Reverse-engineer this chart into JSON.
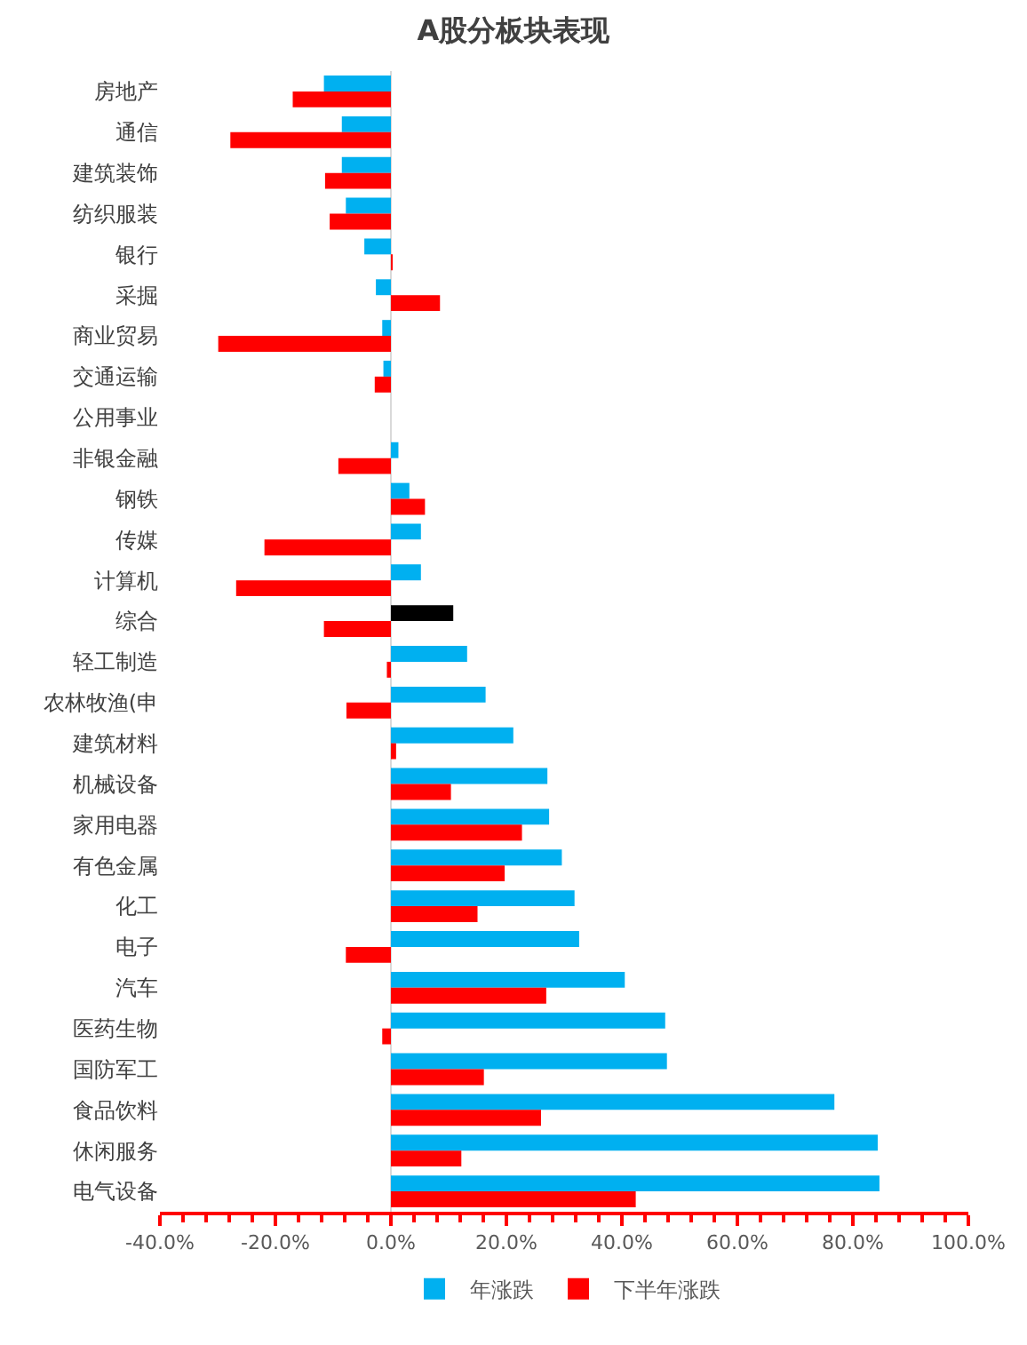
{
  "chart_data": {
    "type": "bar",
    "orientation": "horizontal",
    "title": "A股分板块表现",
    "categories": [
      "房地产",
      "通信",
      "建筑装饰",
      "纺织服装",
      "银行",
      "采掘",
      "商业贸易",
      "交通运输",
      "公用事业",
      "非银金融",
      "钢铁",
      "传媒",
      "计算机",
      "综合",
      "轻工制造",
      "农林牧渔(申",
      "建筑材料",
      "机械设备",
      "家用电器",
      "有色金属",
      "化工",
      "电子",
      "汽车",
      "医药生物",
      "国防军工",
      "食品饮料",
      "休闲服务",
      "电气设备"
    ],
    "series": [
      {
        "name": "年涨跌",
        "color": "#00b0f0",
        "colors": [
          "#00b0f0",
          "#00b0f0",
          "#00b0f0",
          "#00b0f0",
          "#00b0f0",
          "#00b0f0",
          "#00b0f0",
          "#00b0f0",
          "#00b0f0",
          "#00b0f0",
          "#00b0f0",
          "#00b0f0",
          "#00b0f0",
          "#000000",
          "#00b0f0",
          "#00b0f0",
          "#00b0f0",
          "#00b0f0",
          "#00b0f0",
          "#00b0f0",
          "#00b0f0",
          "#00b0f0",
          "#00b0f0",
          "#00b0f0",
          "#00b0f0",
          "#00b0f0",
          "#00b0f0",
          "#00b0f0"
        ],
        "values": [
          -11.6,
          -8.5,
          -8.5,
          -7.8,
          -4.6,
          -2.6,
          -1.5,
          -1.3,
          0,
          1.3,
          3.2,
          5.2,
          5.2,
          10.8,
          13.2,
          16.4,
          21.2,
          27.1,
          27.4,
          29.6,
          31.8,
          32.6,
          40.5,
          47.5,
          47.8,
          76.8,
          84.3,
          84.6
        ]
      },
      {
        "name": "下半年涨跌",
        "color": "#ff0000",
        "values": [
          -17.0,
          -27.8,
          -11.4,
          -10.6,
          0.3,
          8.5,
          -29.9,
          -2.8,
          0,
          -9.1,
          5.9,
          -21.9,
          -26.8,
          -11.6,
          -0.7,
          -7.7,
          0.9,
          10.4,
          22.7,
          19.7,
          15.0,
          -7.8,
          26.9,
          -1.5,
          16.1,
          26.0,
          12.2,
          42.4
        ]
      }
    ],
    "xlim": [
      -40,
      100
    ],
    "xticks": [
      {
        "value": -40,
        "label": "-40.0%"
      },
      {
        "value": -20,
        "label": "-20.0%"
      },
      {
        "value": 0,
        "label": "0.0%"
      },
      {
        "value": 20,
        "label": "20.0%"
      },
      {
        "value": 40,
        "label": "40.0%"
      },
      {
        "value": 60,
        "label": "60.0%"
      },
      {
        "value": 80,
        "label": "80.0%"
      },
      {
        "value": 100,
        "label": "100.0%"
      }
    ],
    "ref_lines": [
      {
        "axis": "x",
        "value": 0,
        "color": "#d9d9d9"
      }
    ],
    "grid": false,
    "legend": "bottom"
  }
}
